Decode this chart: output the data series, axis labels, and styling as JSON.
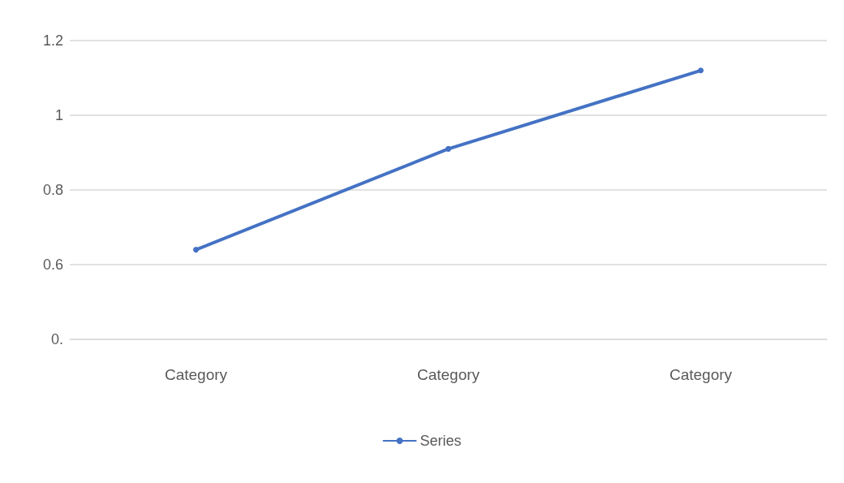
{
  "chart_data": {
    "type": "line",
    "categories": [
      "Category",
      "Category",
      "Category"
    ],
    "series": [
      {
        "name": "Series",
        "color": "#4472c4",
        "values": [
          0.64,
          0.91,
          1.12
        ]
      }
    ],
    "ylim": [
      0.4,
      1.2
    ],
    "yticks": [
      {
        "value": 0.4,
        "label": "0."
      },
      0.6,
      0.8,
      1,
      1.2
    ],
    "grid": "y",
    "legend": "bottom",
    "marker": "circle",
    "line_style": "solid"
  }
}
